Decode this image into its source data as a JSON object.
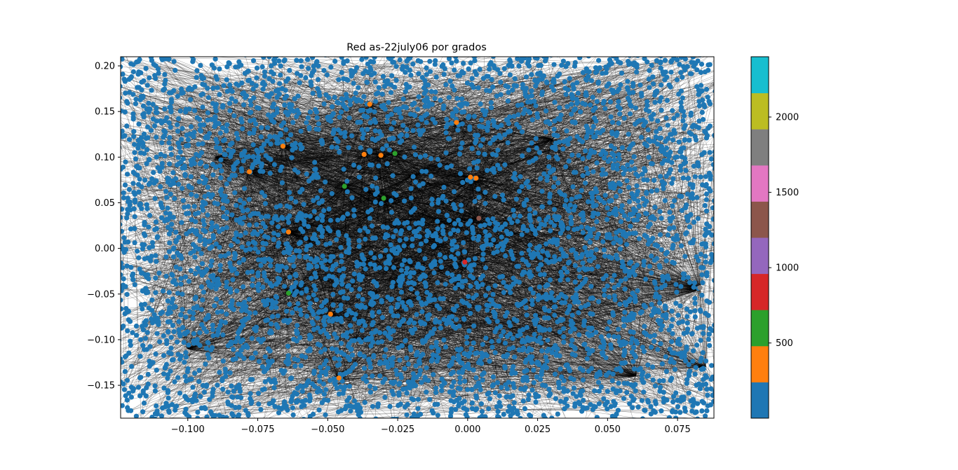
{
  "chart_data": {
    "type": "scatter",
    "title": "Red as-22july06 por grados",
    "xlabel": "",
    "ylabel": "",
    "xlim": [
      -0.124,
      0.088
    ],
    "ylim": [
      -0.186,
      0.21
    ],
    "x_ticks": [
      -0.1,
      -0.075,
      -0.05,
      -0.025,
      0.0,
      0.025,
      0.05,
      0.075
    ],
    "x_tick_labels": [
      "−0.100",
      "−0.075",
      "−0.050",
      "−0.025",
      "0.000",
      "0.025",
      "0.050",
      "0.075"
    ],
    "y_ticks": [
      -0.15,
      -0.1,
      -0.05,
      0.0,
      0.05,
      0.1,
      0.15,
      0.2
    ],
    "y_tick_labels": [
      "−0.15",
      "−0.10",
      "−0.05",
      "0.00",
      "0.05",
      "0.10",
      "0.15",
      "0.20"
    ],
    "grid": false,
    "background_note": "dense network of node points (degree < ~250) connected by many thin black edges",
    "base_node_color": "#1f77b4",
    "edge_color": "#000000",
    "base_node_count_estimate": 4800,
    "hub_nodes": [
      {
        "x": -0.035,
        "y": 0.158,
        "degree_bin": "250-500",
        "color": "#ff7f0e"
      },
      {
        "x": -0.004,
        "y": 0.138,
        "degree_bin": "250-500",
        "color": "#ff7f0e"
      },
      {
        "x": -0.066,
        "y": 0.112,
        "degree_bin": "250-500",
        "color": "#ff7f0e"
      },
      {
        "x": -0.037,
        "y": 0.103,
        "degree_bin": "250-500",
        "color": "#ff7f0e"
      },
      {
        "x": -0.031,
        "y": 0.102,
        "degree_bin": "250-500",
        "color": "#ff7f0e"
      },
      {
        "x": -0.078,
        "y": 0.084,
        "degree_bin": "250-500",
        "color": "#ff7f0e"
      },
      {
        "x": 0.001,
        "y": 0.078,
        "degree_bin": "250-500",
        "color": "#ff7f0e"
      },
      {
        "x": 0.003,
        "y": 0.077,
        "degree_bin": "250-500",
        "color": "#ff7f0e"
      },
      {
        "x": -0.064,
        "y": 0.018,
        "degree_bin": "250-500",
        "color": "#ff7f0e"
      },
      {
        "x": -0.049,
        "y": -0.072,
        "degree_bin": "250-500",
        "color": "#ff7f0e"
      },
      {
        "x": -0.046,
        "y": -0.142,
        "degree_bin": "250-500",
        "color": "#ff7f0e"
      },
      {
        "x": -0.026,
        "y": 0.104,
        "degree_bin": "500-750",
        "color": "#2ca02c"
      },
      {
        "x": -0.044,
        "y": 0.068,
        "degree_bin": "500-750",
        "color": "#2ca02c"
      },
      {
        "x": -0.03,
        "y": 0.055,
        "degree_bin": "500-750",
        "color": "#2ca02c"
      },
      {
        "x": -0.064,
        "y": -0.049,
        "degree_bin": "500-750",
        "color": "#2ca02c"
      },
      {
        "x": -0.001,
        "y": -0.015,
        "degree_bin": "750-1000",
        "color": "#d62728"
      },
      {
        "x": 0.004,
        "y": 0.033,
        "degree_bin": "1250-1500",
        "color": "#8c564b"
      },
      {
        "x": 0.083,
        "y": -0.043,
        "degree_bin": "1750-2000",
        "color": "#7f7f7f"
      }
    ],
    "colorbar": {
      "colors": [
        "#1f77b4",
        "#ff7f0e",
        "#2ca02c",
        "#d62728",
        "#9467bd",
        "#8c564b",
        "#e377c2",
        "#7f7f7f",
        "#bcbd22",
        "#17becf"
      ],
      "range": [
        1,
        2400
      ],
      "tick_values": [
        500,
        1000,
        1500,
        2000
      ],
      "tick_labels": [
        "500",
        "1000",
        "1500",
        "2000"
      ]
    }
  }
}
